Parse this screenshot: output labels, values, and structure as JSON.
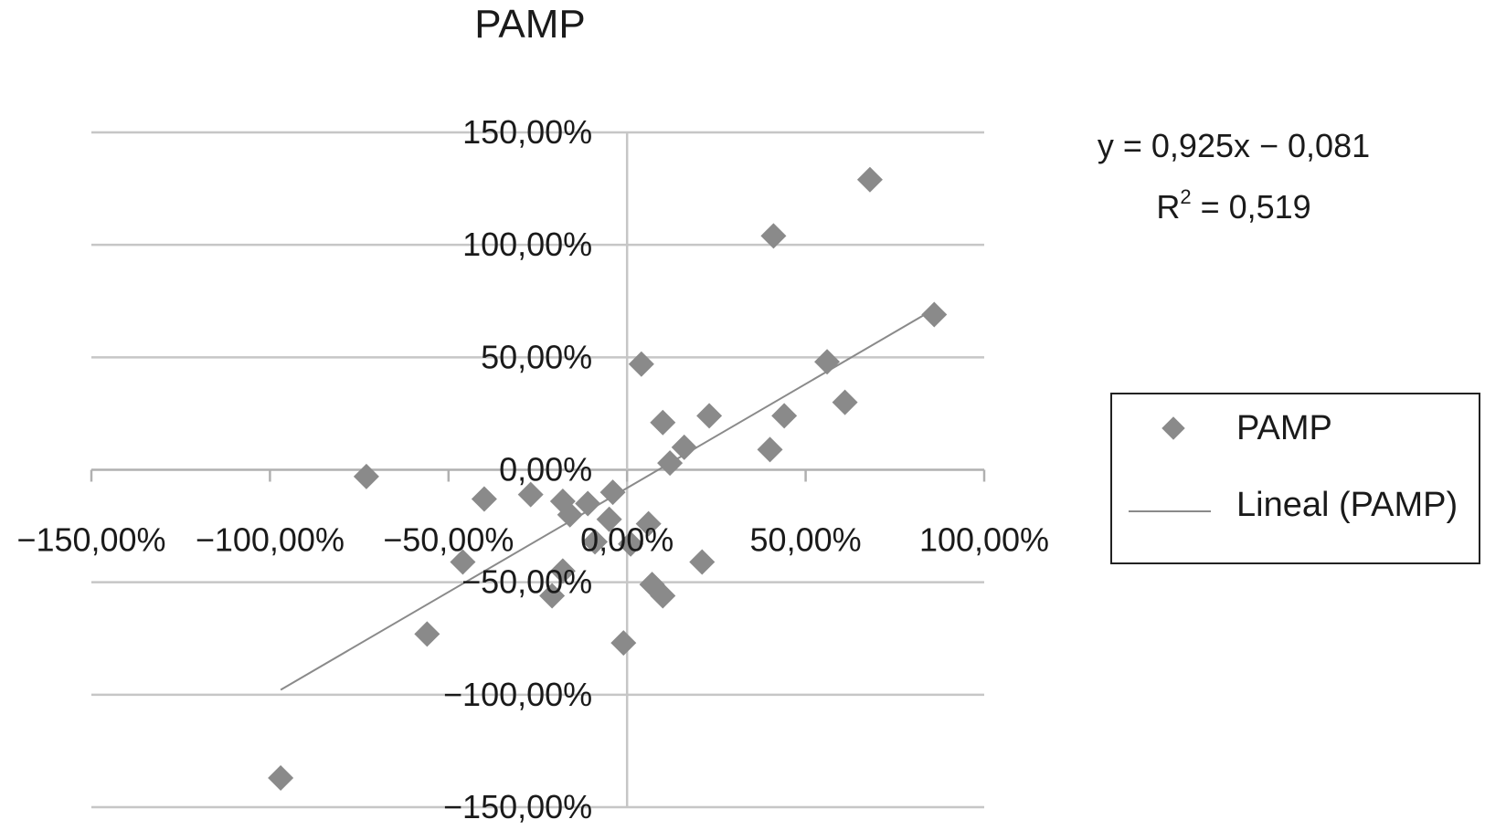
{
  "chart_data": {
    "type": "scatter",
    "title": "PAMP",
    "xlabel": "",
    "ylabel": "",
    "xlim": [
      -1.5,
      1.0
    ],
    "ylim": [
      -1.5,
      1.5
    ],
    "x_ticks": [
      {
        "value": -1.5,
        "label": "−150,00%"
      },
      {
        "value": -1.0,
        "label": "−100,00%"
      },
      {
        "value": -0.5,
        "label": "−50,00%"
      },
      {
        "value": 0.0,
        "label": "0,00%"
      },
      {
        "value": 0.5,
        "label": "50,00%"
      },
      {
        "value": 1.0,
        "label": "100,00%"
      }
    ],
    "y_ticks": [
      {
        "value": 1.5,
        "label": "150,00%"
      },
      {
        "value": 1.0,
        "label": "100,00%"
      },
      {
        "value": 0.5,
        "label": "50,00%"
      },
      {
        "value": 0.0,
        "label": "0,00%"
      },
      {
        "value": -0.5,
        "label": "−50,00%"
      },
      {
        "value": -1.0,
        "label": "−100,00%"
      },
      {
        "value": -1.5,
        "label": "−150,00%"
      }
    ],
    "grid": {
      "horizontal": true,
      "vertical": false
    },
    "series": [
      {
        "name": "PAMP",
        "marker": "diamond",
        "color": "#8a8a8a",
        "points": [
          {
            "x": 0.68,
            "y": 1.29
          },
          {
            "x": 0.41,
            "y": 1.04
          },
          {
            "x": 0.86,
            "y": 0.69
          },
          {
            "x": 0.56,
            "y": 0.48
          },
          {
            "x": 0.61,
            "y": 0.3
          },
          {
            "x": 0.44,
            "y": 0.24
          },
          {
            "x": 0.4,
            "y": 0.09
          },
          {
            "x": 0.04,
            "y": 0.47
          },
          {
            "x": 0.23,
            "y": 0.24
          },
          {
            "x": 0.1,
            "y": 0.21
          },
          {
            "x": 0.16,
            "y": 0.1
          },
          {
            "x": 0.12,
            "y": 0.03
          },
          {
            "x": -0.73,
            "y": -0.03
          },
          {
            "x": -0.4,
            "y": -0.13
          },
          {
            "x": -0.27,
            "y": -0.11
          },
          {
            "x": -0.18,
            "y": -0.14
          },
          {
            "x": -0.11,
            "y": -0.15
          },
          {
            "x": -0.04,
            "y": -0.1
          },
          {
            "x": -0.16,
            "y": -0.2
          },
          {
            "x": -0.05,
            "y": -0.22
          },
          {
            "x": 0.06,
            "y": -0.24
          },
          {
            "x": -0.09,
            "y": -0.32
          },
          {
            "x": 0.01,
            "y": -0.33
          },
          {
            "x": -0.46,
            "y": -0.41
          },
          {
            "x": -0.18,
            "y": -0.45
          },
          {
            "x": 0.21,
            "y": -0.41
          },
          {
            "x": -0.21,
            "y": -0.56
          },
          {
            "x": 0.07,
            "y": -0.51
          },
          {
            "x": 0.1,
            "y": -0.56
          },
          {
            "x": -0.56,
            "y": -0.73
          },
          {
            "x": -0.01,
            "y": -0.77
          },
          {
            "x": -0.97,
            "y": -1.37
          }
        ]
      },
      {
        "name": "Lineal (PAMP)",
        "type": "line",
        "color": "#8a8a8a",
        "equation": {
          "slope": 0.925,
          "intercept": -0.081
        },
        "x_range": [
          -0.97,
          0.86
        ]
      }
    ],
    "annotation": {
      "equation": "y = 0,925x − 0,081",
      "r2_base": "R",
      "r2_sup": "2",
      "r2_value": " = 0,519"
    },
    "legend": {
      "placement": "right",
      "entries": [
        "PAMP",
        "Lineal (PAMP)"
      ]
    }
  }
}
